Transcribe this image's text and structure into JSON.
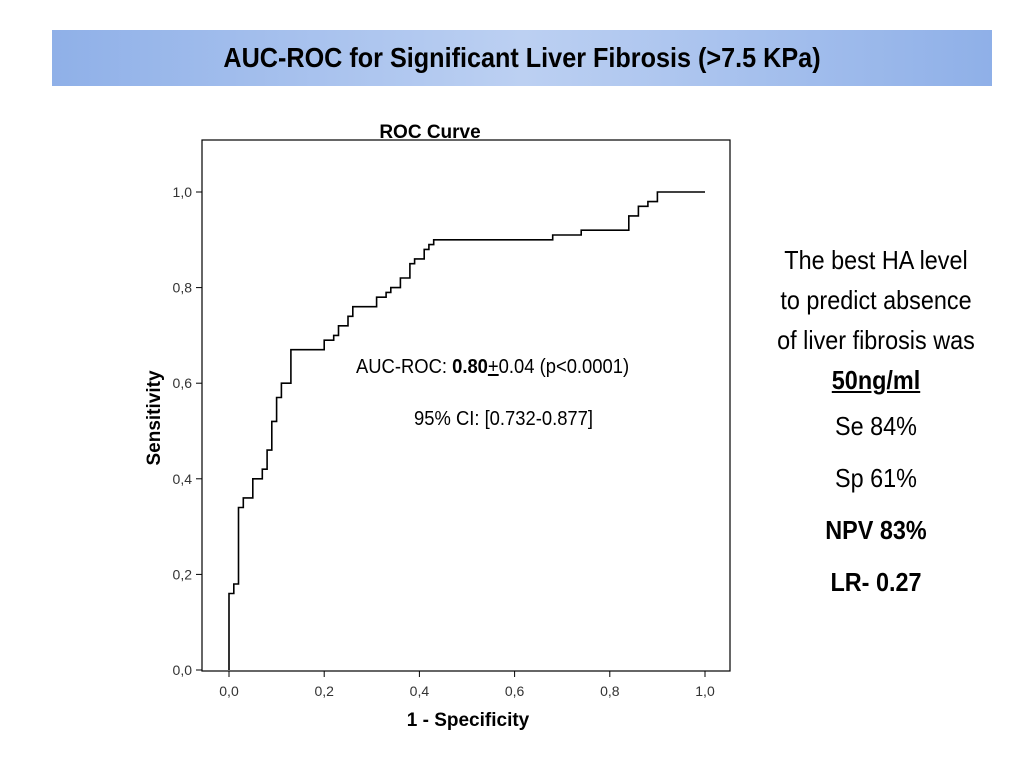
{
  "slide": {
    "title": "AUC-ROC for Significant Liver Fibrosis (>7.5 KPa)"
  },
  "chart_data": {
    "type": "line",
    "title": "ROC Curve",
    "xlabel": "1 - Specificity",
    "ylabel": "Sensitivity",
    "xlim": [
      0,
      1
    ],
    "ylim": [
      0,
      1
    ],
    "xticks": [
      "0,0",
      "0,2",
      "0,4",
      "0,6",
      "0,8",
      "1,0"
    ],
    "yticks": [
      "0,0",
      "0,2",
      "0,4",
      "0,6",
      "0,8",
      "1,0"
    ],
    "grid": false,
    "series": [
      {
        "x": [
          0.0,
          0.0,
          0.01,
          0.01,
          0.02,
          0.02,
          0.03,
          0.03,
          0.05,
          0.05,
          0.07,
          0.07,
          0.08,
          0.08,
          0.09,
          0.09,
          0.1,
          0.1,
          0.11,
          0.11,
          0.13,
          0.13,
          0.14,
          0.14,
          0.2,
          0.2,
          0.22,
          0.22,
          0.23,
          0.23,
          0.25,
          0.25,
          0.26,
          0.26,
          0.31,
          0.31,
          0.33,
          0.33,
          0.34,
          0.34,
          0.36,
          0.36,
          0.38,
          0.38,
          0.39,
          0.39,
          0.41,
          0.41,
          0.42,
          0.42,
          0.43,
          0.43,
          0.68,
          0.68,
          0.74,
          0.74,
          0.84,
          0.84,
          0.86,
          0.86,
          0.88,
          0.88,
          0.9,
          0.9,
          1.0
        ],
        "y": [
          0.0,
          0.16,
          0.16,
          0.18,
          0.18,
          0.34,
          0.34,
          0.36,
          0.36,
          0.4,
          0.4,
          0.42,
          0.42,
          0.46,
          0.46,
          0.52,
          0.52,
          0.57,
          0.57,
          0.6,
          0.6,
          0.67,
          0.67,
          0.67,
          0.67,
          0.69,
          0.69,
          0.7,
          0.7,
          0.72,
          0.72,
          0.74,
          0.74,
          0.76,
          0.76,
          0.78,
          0.78,
          0.79,
          0.79,
          0.8,
          0.8,
          0.82,
          0.82,
          0.85,
          0.85,
          0.86,
          0.86,
          0.88,
          0.88,
          0.89,
          0.89,
          0.9,
          0.9,
          0.91,
          0.91,
          0.92,
          0.92,
          0.95,
          0.95,
          0.97,
          0.97,
          0.98,
          0.98,
          1.0,
          1.0
        ]
      }
    ],
    "annotations": {
      "auc_prefix": "AUC-ROC: ",
      "auc_value": "0.80",
      "auc_pm": "+",
      "auc_rest": "0.04 (p<0.0001)",
      "ci": "95% CI: [0.732-0.877]"
    }
  },
  "summary": {
    "line1": "The best HA level",
    "line2": "to predict absence",
    "line3": "of liver fibrosis was",
    "threshold": "50ng/ml",
    "se": "Se 84%",
    "sp": "Sp 61%",
    "npv": "NPV 83%",
    "lr": "LR- 0.27"
  }
}
